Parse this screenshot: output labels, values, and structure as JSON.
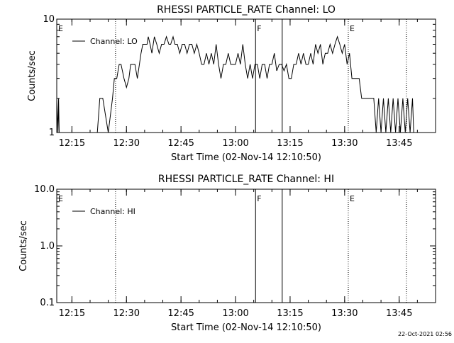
{
  "chart_data": [
    {
      "type": "line",
      "title": "RHESSI PARTICLE_RATE Channel: LO",
      "xlabel": "Start Time (02-Nov-14 12:10:50)",
      "ylabel": "Counts/sec",
      "y_scale": "log",
      "ylim": [
        1,
        10
      ],
      "y_tick_labels": [
        "1",
        "10"
      ],
      "xlim": [
        "12:10:50",
        "13:55:00"
      ],
      "x_tick_labels": [
        "12:15",
        "12:30",
        "12:45",
        "13:00",
        "13:15",
        "13:30",
        "13:45"
      ],
      "grid": false,
      "legend": "top-left",
      "series": [
        {
          "name": "Channel: LO",
          "x": [
            "12:10:50",
            "12:11:10",
            "12:11:20",
            "12:11:30",
            "12:11:50",
            "12:12:30",
            "12:13:30",
            "12:17:00",
            "12:22:00",
            "12:22:40",
            "12:23:00",
            "12:23:30",
            "12:25:00",
            "12:26:10",
            "12:26:40",
            "12:27:20",
            "12:28:00",
            "12:28:30",
            "12:29:20",
            "12:30:00",
            "12:30:40",
            "12:31:10",
            "12:31:40",
            "12:32:20",
            "12:33:00",
            "12:34:00",
            "12:34:30",
            "12:35:00",
            "12:35:40",
            "12:36:00",
            "12:36:30",
            "12:37:00",
            "12:37:40",
            "12:38:20",
            "12:39:00",
            "12:39:40",
            "12:40:20",
            "12:41:00",
            "12:41:40",
            "12:42:10",
            "12:42:50",
            "12:43:20",
            "12:44:00",
            "12:44:40",
            "12:45:20",
            "12:46:00",
            "12:46:40",
            "12:47:20",
            "12:48:00",
            "12:48:40",
            "12:49:20",
            "12:50:00",
            "12:50:40",
            "12:51:20",
            "12:52:00",
            "12:52:40",
            "12:53:20",
            "12:54:00",
            "12:54:40",
            "12:55:20",
            "12:56:00",
            "12:56:40",
            "12:57:20",
            "12:58:00",
            "12:58:40",
            "12:59:20",
            "13:00:00",
            "13:00:40",
            "13:01:20",
            "13:02:00",
            "13:02:40",
            "13:03:20",
            "13:04:00",
            "13:04:40",
            "13:05:20",
            "13:06:00",
            "13:06:40",
            "13:07:20",
            "13:08:00",
            "13:08:40",
            "13:09:20",
            "13:10:00",
            "13:10:40",
            "13:11:20",
            "13:12:00",
            "13:12:40",
            "13:13:20",
            "13:14:00",
            "13:14:40",
            "13:15:20",
            "13:16:00",
            "13:16:40",
            "13:17:20",
            "13:18:00",
            "13:18:40",
            "13:19:20",
            "13:20:00",
            "13:20:40",
            "13:21:20",
            "13:22:00",
            "13:22:40",
            "13:23:20",
            "13:24:00",
            "13:24:40",
            "13:25:20",
            "13:26:00",
            "13:26:40",
            "13:27:20",
            "13:28:00",
            "13:28:40",
            "13:29:20",
            "13:30:00",
            "13:30:40",
            "13:31:20",
            "13:32:00",
            "13:32:40",
            "13:33:20",
            "13:34:00",
            "13:34:40",
            "13:35:20",
            "13:36:00",
            "13:36:40",
            "13:37:20",
            "13:38:00",
            "13:38:40",
            "13:39:20",
            "13:40:00",
            "13:40:40",
            "13:41:20",
            "13:42:00",
            "13:42:40",
            "13:43:20",
            "13:44:00",
            "13:44:40",
            "13:45:20",
            "13:46:00",
            "13:46:40",
            "13:47:20",
            "13:48:00",
            "13:48:40",
            "13:49:00"
          ],
          "y": [
            2,
            1,
            2,
            1,
            1,
            1,
            1,
            1,
            1,
            2,
            2,
            2,
            1,
            2,
            3,
            3,
            4,
            4,
            3,
            2.5,
            3,
            4,
            4,
            4,
            3,
            5,
            6,
            6,
            6,
            7,
            6,
            5,
            7,
            6,
            5,
            6,
            6,
            7,
            6,
            6,
            7,
            6,
            6,
            5,
            6,
            6,
            5,
            6,
            6,
            5,
            6,
            5,
            4,
            4,
            5,
            4,
            5,
            4,
            6,
            4,
            3,
            4,
            4,
            5,
            4,
            4,
            4,
            5,
            4,
            6,
            4,
            3,
            4,
            3,
            4,
            4,
            3,
            4,
            4,
            3,
            4,
            4,
            5,
            3.5,
            4,
            4,
            3.5,
            4,
            3,
            3,
            4,
            4,
            5,
            4,
            5,
            4,
            4,
            5,
            4,
            6,
            5,
            6,
            4,
            5,
            5,
            6,
            5,
            6,
            7,
            6,
            5,
            6,
            4,
            5,
            3,
            3,
            3,
            3,
            2,
            2,
            2,
            2,
            2,
            2,
            1,
            2,
            1,
            2,
            1,
            2,
            1,
            2,
            1,
            2,
            1,
            2,
            1,
            2,
            1,
            2,
            1
          ]
        }
      ],
      "annotations": [
        {
          "label": "E",
          "x": "12:10:50",
          "style": "dotted"
        },
        {
          "label": "",
          "x": "12:27:00",
          "style": "dotted"
        },
        {
          "label": "F",
          "x": "13:05:30",
          "style": "solid"
        },
        {
          "label": "",
          "x": "13:12:50",
          "style": "solid"
        },
        {
          "label": "E",
          "x": "13:31:00",
          "style": "dotted"
        },
        {
          "label": "",
          "x": "13:47:00",
          "style": "dotted"
        }
      ]
    },
    {
      "type": "line",
      "title": "RHESSI PARTICLE_RATE Channel: HI",
      "xlabel": "Start Time (02-Nov-14 12:10:50)",
      "ylabel": "Counts/sec",
      "y_scale": "log",
      "ylim": [
        0.1,
        10
      ],
      "y_tick_labels": [
        "0.1",
        "1.0",
        "10.0"
      ],
      "xlim": [
        "12:10:50",
        "13:55:00"
      ],
      "x_tick_labels": [
        "12:15",
        "12:30",
        "12:45",
        "13:00",
        "13:15",
        "13:30",
        "13:45"
      ],
      "grid": false,
      "legend": "top-left",
      "series": [
        {
          "name": "Channel: HI",
          "x": [],
          "y": []
        }
      ],
      "annotations": [
        {
          "label": "E",
          "x": "12:10:50",
          "style": "dotted"
        },
        {
          "label": "",
          "x": "12:27:00",
          "style": "dotted"
        },
        {
          "label": "F",
          "x": "13:05:30",
          "style": "solid"
        },
        {
          "label": "",
          "x": "13:12:50",
          "style": "solid"
        },
        {
          "label": "E",
          "x": "13:31:00",
          "style": "dotted"
        },
        {
          "label": "",
          "x": "13:47:00",
          "style": "dotted"
        }
      ]
    }
  ],
  "footer": {
    "timestamp": "22-Oct-2021 02:56"
  }
}
